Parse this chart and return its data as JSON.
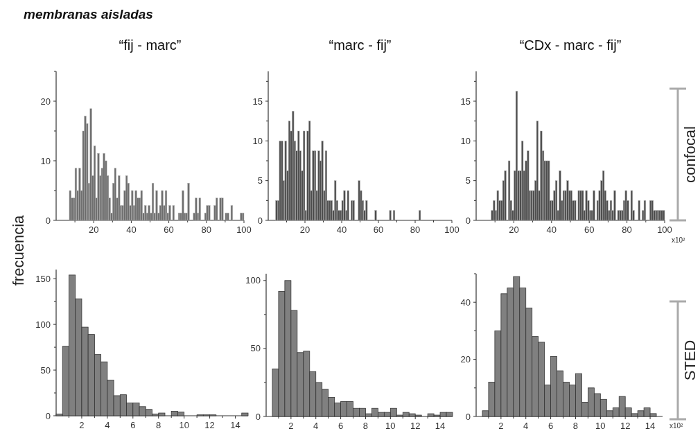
{
  "chart_data": [
    {
      "type": "histogram",
      "title": "“fij - marc”",
      "ylabel": "frecuencia",
      "annotations": [
        "membranas aisladas"
      ],
      "color": "#6e6e6e",
      "xlim": [
        0,
        100
      ],
      "ylim": [
        0,
        25
      ],
      "xticks": [
        {
          "value": 10,
          "label": null
        },
        20,
        {
          "value": 30,
          "label": null
        },
        40,
        {
          "value": 50,
          "label": null
        },
        60,
        {
          "value": 70,
          "label": null
        },
        80,
        {
          "value": 90,
          "label": null
        },
        100
      ],
      "yticks": [
        0,
        {
          "value": 5,
          "label": null
        },
        10,
        {
          "value": 15,
          "label": null
        },
        20,
        {
          "value": 25,
          "label": null
        }
      ],
      "bins": [
        7,
        8,
        9,
        10,
        11,
        12,
        13,
        14,
        15,
        16,
        17,
        18,
        19,
        20,
        21,
        22,
        23,
        24,
        25,
        26,
        27,
        28,
        29,
        30,
        31,
        32,
        33,
        34,
        35,
        36,
        37,
        38,
        39,
        40,
        41,
        42,
        43,
        44,
        45,
        46,
        47,
        48,
        49,
        50,
        51,
        52,
        53,
        54,
        55,
        56,
        57,
        58,
        59,
        60,
        61,
        62,
        63,
        64,
        65,
        66,
        67,
        68,
        69,
        70,
        71,
        72,
        73,
        74,
        75,
        76,
        77,
        78,
        79,
        80,
        81,
        82,
        83,
        84,
        85,
        86,
        87,
        88,
        89,
        90,
        91,
        92,
        93,
        94,
        95,
        96,
        97,
        98,
        99,
        100
      ],
      "values": [
        5,
        3.75,
        3.75,
        8.75,
        5,
        8.75,
        5,
        15,
        17.5,
        16.25,
        6.25,
        18.75,
        7.5,
        12.5,
        3.75,
        11.25,
        7.5,
        8.75,
        11.25,
        10,
        7.5,
        3.75,
        1.25,
        6.25,
        8.75,
        3.75,
        7.5,
        2.5,
        2.5,
        5,
        7.5,
        6.25,
        2.5,
        5,
        2.5,
        5,
        3.75,
        3.75,
        5,
        1.25,
        2.5,
        1.25,
        2.5,
        1.25,
        6.25,
        1.25,
        5,
        1.25,
        2.5,
        5,
        2.5,
        5,
        1.25,
        2.5,
        0,
        2.5,
        0,
        0,
        1.25,
        1.25,
        5,
        1.25,
        1.25,
        6.25,
        0,
        0,
        1.25,
        3.75,
        1.25,
        3.75,
        0,
        0,
        1.25,
        2.5,
        2.5,
        0,
        0,
        2.5,
        3.75,
        0,
        3.75,
        3.75,
        0,
        1.25,
        1.25,
        0,
        2.5,
        0,
        0,
        0,
        0,
        1.25,
        1.25
      ]
    },
    {
      "type": "histogram",
      "title": "“marc - fij”",
      "color": "#4d4d4d",
      "xlim": [
        0,
        100
      ],
      "ylim": [
        0,
        18.75
      ],
      "xticks": [
        {
          "value": 10,
          "label": null
        },
        20,
        {
          "value": 30,
          "label": null
        },
        40,
        {
          "value": 50,
          "label": null
        },
        60,
        {
          "value": 70,
          "label": null
        },
        80,
        {
          "value": 90,
          "label": null
        },
        100
      ],
      "yticks": [
        0,
        {
          "value": 2.5,
          "label": null
        },
        5,
        {
          "value": 7.5,
          "label": null
        },
        10,
        {
          "value": 12.5,
          "label": null
        },
        15,
        {
          "value": 17.5,
          "label": null
        }
      ],
      "bins": [
        4,
        5,
        6,
        7,
        8,
        9,
        10,
        11,
        12,
        13,
        14,
        15,
        16,
        17,
        18,
        19,
        20,
        21,
        22,
        23,
        24,
        25,
        26,
        27,
        28,
        29,
        30,
        31,
        32,
        33,
        34,
        35,
        36,
        37,
        38,
        39,
        40,
        41,
        42,
        43,
        44,
        45,
        46,
        47,
        48,
        49,
        50,
        51,
        52,
        53,
        54,
        55,
        56,
        57,
        58,
        59,
        60,
        61,
        62,
        63,
        64,
        65,
        66,
        67,
        68,
        69,
        70,
        71,
        72,
        73,
        74,
        75,
        76,
        77,
        78,
        79,
        80,
        81,
        82,
        83
      ],
      "values": [
        2.5,
        2.5,
        10,
        10,
        5,
        10,
        6.25,
        12.5,
        11.25,
        13.75,
        10,
        8.75,
        11.25,
        8.75,
        6.25,
        11.25,
        1.25,
        11.25,
        12.5,
        3.75,
        8.75,
        8.75,
        3.75,
        8.75,
        7.5,
        10,
        3.75,
        8.75,
        2.5,
        2.5,
        2.5,
        1.25,
        5,
        2.5,
        1.25,
        1.25,
        2.5,
        3.75,
        1.25,
        3.75,
        0,
        2.5,
        2.5,
        0,
        0,
        5,
        3.75,
        2.5,
        1.25,
        2.5,
        0,
        0,
        0,
        0,
        1.25,
        0,
        0,
        0,
        0,
        0,
        0,
        0,
        1.25,
        0,
        1.25,
        0,
        0,
        0,
        0,
        0,
        0,
        0,
        0,
        0,
        0,
        0,
        0,
        0,
        1.25
      ]
    },
    {
      "type": "histogram",
      "title": "“CDx - marc - fij”",
      "xlabel": "x10²",
      "annotations": [
        "confocal"
      ],
      "color": "#4d4d4d",
      "xlim": [
        0,
        100
      ],
      "ylim": [
        0,
        18.75
      ],
      "xticks": [
        {
          "value": 10,
          "label": null
        },
        20,
        {
          "value": 30,
          "label": null
        },
        40,
        {
          "value": 50,
          "label": null
        },
        60,
        {
          "value": 70,
          "label": null
        },
        80,
        {
          "value": 90,
          "label": null
        },
        100
      ],
      "yticks": [
        0,
        {
          "value": 2.5,
          "label": null
        },
        5,
        {
          "value": 7.5,
          "label": null
        },
        10,
        {
          "value": 12.5,
          "label": null
        },
        15,
        {
          "value": 17.5,
          "label": null
        }
      ],
      "bins": [
        8,
        9,
        10,
        11,
        12,
        13,
        14,
        15,
        16,
        17,
        18,
        19,
        20,
        21,
        22,
        23,
        24,
        25,
        26,
        27,
        28,
        29,
        30,
        31,
        32,
        33,
        34,
        35,
        36,
        37,
        38,
        39,
        40,
        41,
        42,
        43,
        44,
        45,
        46,
        47,
        48,
        49,
        50,
        51,
        52,
        53,
        54,
        55,
        56,
        57,
        58,
        59,
        60,
        61,
        62,
        63,
        64,
        65,
        66,
        67,
        68,
        69,
        70,
        71,
        72,
        73,
        74,
        75,
        76,
        77,
        78,
        79,
        80,
        81,
        82,
        83,
        84,
        85,
        86,
        87,
        88,
        89,
        90,
        91,
        92,
        93,
        94,
        95,
        96,
        97,
        98,
        99,
        100
      ],
      "values": [
        1.25,
        2.5,
        1.25,
        3.75,
        2.5,
        2.5,
        5,
        6.25,
        0,
        7.5,
        2.5,
        1.25,
        6.25,
        16.25,
        6.25,
        6.25,
        10,
        6.25,
        7.5,
        8.75,
        3.75,
        3.75,
        3.75,
        5,
        12.5,
        3.75,
        11.25,
        8.75,
        7.5,
        7.5,
        7.5,
        2.5,
        2.5,
        3.75,
        5,
        1.25,
        6.25,
        2.5,
        3.75,
        3.75,
        5,
        3.75,
        3.75,
        2.5,
        2.5,
        0,
        3.75,
        3.75,
        3.75,
        1.25,
        3.75,
        2.5,
        1.25,
        1.25,
        3.75,
        0,
        2.5,
        3.75,
        5,
        6.25,
        3.75,
        2.5,
        1.25,
        2.5,
        1.25,
        3.75,
        0,
        1.25,
        1.25,
        1.25,
        2.5,
        3.75,
        2.5,
        0,
        3.75,
        1.25,
        0,
        0,
        2.5,
        0,
        1.25,
        2.5,
        0,
        0,
        2.5,
        2.5,
        1.25,
        1.25,
        1.25,
        1.25,
        1.25,
        1.25
      ]
    },
    {
      "type": "histogram",
      "color": "#808080",
      "xlim": [
        0,
        15
      ],
      "ylim": [
        0,
        160
      ],
      "xticks": [
        {
          "value": 1,
          "label": null
        },
        2,
        {
          "value": 3,
          "label": null
        },
        4,
        {
          "value": 5,
          "label": null
        },
        6,
        {
          "value": 7,
          "label": null
        },
        8,
        {
          "value": 9,
          "label": null
        },
        10,
        {
          "value": 11,
          "label": null
        },
        12,
        {
          "value": 13,
          "label": null
        },
        14
      ],
      "yticks": [
        0,
        {
          "value": 25,
          "label": null
        },
        50,
        {
          "value": 75,
          "label": null
        },
        100,
        {
          "value": 125,
          "label": null
        },
        150
      ],
      "bins": [
        0,
        0.5,
        1,
        1.5,
        2,
        2.5,
        3,
        3.5,
        4,
        4.5,
        5,
        5.5,
        6,
        6.5,
        7,
        7.5,
        8,
        8.5,
        9,
        9.5,
        10,
        10.5,
        11,
        11.5,
        12,
        12.5,
        13,
        13.5,
        14,
        14.5,
        15
      ],
      "values": [
        2,
        76,
        154,
        128,
        97,
        89,
        67,
        59,
        39,
        22,
        23,
        14,
        14,
        10,
        7,
        2,
        3,
        0,
        5,
        4,
        0,
        0,
        1,
        1,
        1,
        0,
        0,
        0,
        0,
        3
      ]
    },
    {
      "type": "histogram",
      "color": "#808080",
      "xlim": [
        0,
        15
      ],
      "ylim": [
        0,
        105
      ],
      "xticks": [
        {
          "value": 1,
          "label": null
        },
        2,
        {
          "value": 3,
          "label": null
        },
        4,
        {
          "value": 5,
          "label": null
        },
        6,
        {
          "value": 7,
          "label": null
        },
        8,
        {
          "value": 9,
          "label": null
        },
        10,
        {
          "value": 11,
          "label": null
        },
        12,
        {
          "value": 13,
          "label": null
        },
        14
      ],
      "yticks": [
        0,
        {
          "value": 25,
          "label": null
        },
        50,
        {
          "value": 75,
          "label": null
        },
        100
      ],
      "bins": [
        0.5,
        1,
        1.5,
        2,
        2.5,
        3,
        3.5,
        4,
        4.5,
        5,
        5.5,
        6,
        6.5,
        7,
        7.5,
        8,
        8.5,
        9,
        9.5,
        10,
        10.5,
        11,
        11.5,
        12,
        12.5,
        13,
        13.5,
        14,
        14.5,
        15
      ],
      "values": [
        35,
        92,
        100,
        78,
        47,
        48,
        33,
        25,
        20,
        14,
        10,
        11,
        11,
        6,
        6,
        2,
        6,
        3,
        3,
        6,
        1,
        3,
        2,
        1,
        0,
        2,
        1,
        3,
        3
      ]
    },
    {
      "type": "histogram",
      "xlabel": "x10²",
      "annotations": [
        "STED"
      ],
      "color": "#808080",
      "xlim": [
        0,
        15
      ],
      "ylim": [
        0,
        50
      ],
      "xticks": [
        {
          "value": 1,
          "label": null
        },
        2,
        {
          "value": 3,
          "label": null
        },
        4,
        {
          "value": 5,
          "label": null
        },
        6,
        {
          "value": 7,
          "label": null
        },
        8,
        {
          "value": 9,
          "label": null
        },
        10,
        {
          "value": 11,
          "label": null
        },
        12,
        {
          "value": 13,
          "label": null
        },
        14
      ],
      "yticks": [
        0,
        {
          "value": 10,
          "label": null
        },
        20,
        {
          "value": 30,
          "label": null
        },
        40,
        {
          "value": 50,
          "label": null
        }
      ],
      "bins": [
        0.5,
        1,
        1.5,
        2,
        2.5,
        3,
        3.5,
        4,
        4.5,
        5,
        5.5,
        6,
        6.5,
        7,
        7.5,
        8,
        8.5,
        9,
        9.5,
        10,
        10.5,
        11,
        11.5,
        12,
        12.5,
        13,
        13.5,
        14,
        14.5
      ],
      "values": [
        2,
        12,
        30,
        43,
        45,
        49,
        45,
        38,
        28,
        26,
        11,
        21,
        16,
        12,
        11,
        15,
        5,
        10,
        8,
        6,
        2,
        3,
        7,
        3,
        1,
        2,
        3,
        1
      ]
    }
  ]
}
